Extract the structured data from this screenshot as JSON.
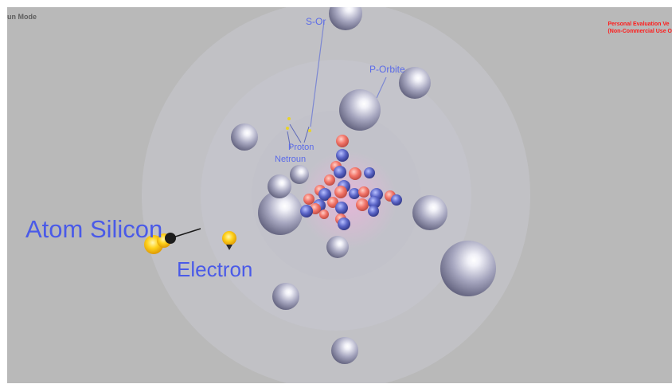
{
  "window": {
    "mode_label": "un Mode",
    "eval_line1": "Personal Evaluation Ve",
    "eval_line2": "(Non-Commercial Use O"
  },
  "labels": {
    "s_orbit": "S-Or",
    "p_orbit": "P-Orbite",
    "proton": "Proton",
    "neutron": "Netroun",
    "atom": "Atom Silicon",
    "electron": "Electron"
  },
  "colors": {
    "background": "#b9b9b9",
    "label_blue": "#4a5ae8",
    "eval_red": "#ff1a1a",
    "proton_color": "#f2756a",
    "neutron_color": "#5c66c8",
    "electron_color": "#ffd21c"
  }
}
